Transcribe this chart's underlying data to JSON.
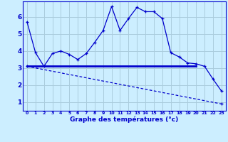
{
  "title": "Graphe des températures (°c)",
  "bg_color": "#cceeff",
  "grid_color": "#aaccdd",
  "line_color": "#0000cc",
  "x_labels": [
    "0",
    "1",
    "2",
    "3",
    "4",
    "5",
    "6",
    "7",
    "8",
    "9",
    "10",
    "11",
    "12",
    "13",
    "14",
    "15",
    "16",
    "17",
    "18",
    "19",
    "20",
    "21",
    "22",
    "23"
  ],
  "y_ticks": [
    1,
    2,
    3,
    4,
    5,
    6
  ],
  "ylim": [
    0.5,
    6.9
  ],
  "xlim": [
    -0.5,
    23.5
  ],
  "line1_x": [
    0,
    1,
    2,
    3,
    4,
    5,
    6,
    7,
    8,
    9,
    10,
    11,
    12,
    13,
    14,
    15,
    16,
    17,
    18,
    19,
    20,
    21,
    22,
    23
  ],
  "line1_y": [
    5.7,
    3.9,
    3.1,
    3.85,
    4.0,
    3.8,
    3.5,
    3.85,
    4.5,
    5.2,
    6.6,
    5.2,
    5.9,
    6.55,
    6.3,
    6.3,
    5.9,
    3.9,
    3.65,
    3.3,
    3.25,
    3.1,
    2.35,
    1.65
  ],
  "line2_x": [
    0,
    20
  ],
  "line2_y": [
    3.1,
    3.1
  ],
  "line3_x": [
    0,
    23
  ],
  "line3_y": [
    3.1,
    0.9
  ],
  "marker": "+"
}
